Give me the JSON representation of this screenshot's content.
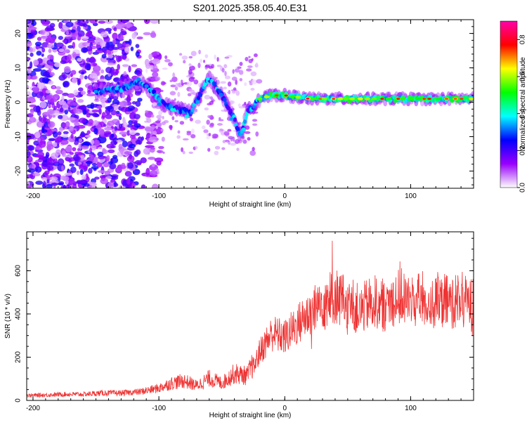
{
  "title": "S201.2025.358.05.40.E31",
  "chart_data": [
    {
      "type": "heatmap",
      "title": "S201.2025.358.05.40.E31",
      "xlabel": "Height of straight line (km)",
      "ylabel": "Frequency (Hz)",
      "xlim": [
        -205,
        150
      ],
      "ylim": [
        -25,
        24
      ],
      "xticks": [
        -200,
        -100,
        0,
        100
      ],
      "yticks": [
        -20,
        -10,
        0,
        10,
        20
      ],
      "colorbar": {
        "label": "Normalized spectral amplitude",
        "range": [
          0.0,
          0.9
        ],
        "ticks": [
          0.0,
          0.2,
          0.4,
          0.6,
          0.8
        ],
        "colors": [
          "#ffffff",
          "#9900ff",
          "#0000ff",
          "#00ffff",
          "#00ff00",
          "#ffff00",
          "#ff0000",
          "#ff00aa"
        ]
      },
      "ridge": {
        "description_points_x": [
          -150,
          -130,
          -115,
          -105,
          -95,
          -85,
          -75,
          -60,
          -50,
          -40,
          -35,
          -30,
          -20,
          -10,
          0,
          20,
          50,
          100,
          150
        ],
        "description_points_y": [
          3,
          4,
          6,
          3,
          -1,
          -2,
          -3,
          7,
          2,
          -5,
          -10,
          -3,
          1,
          2,
          2,
          1,
          1,
          1,
          1
        ]
      }
    },
    {
      "type": "line",
      "xlabel": "Height of straight line (km)",
      "ylabel": "SNR (10 * v/v)",
      "xlim": [
        -205,
        150
      ],
      "ylim": [
        0,
        780
      ],
      "xticks": [
        -200,
        -100,
        0,
        100
      ],
      "yticks": [
        0,
        200,
        400,
        600
      ],
      "series": [
        {
          "name": "SNR",
          "color": "#ee3333",
          "x": [
            -205,
            -190,
            -175,
            -160,
            -145,
            -130,
            -115,
            -100,
            -90,
            -80,
            -70,
            -60,
            -50,
            -40,
            -30,
            -25,
            -20,
            -10,
            0,
            10,
            20,
            30,
            40,
            50,
            60,
            70,
            80,
            90,
            100,
            110,
            120,
            130,
            140,
            150
          ],
          "y": [
            20,
            22,
            25,
            25,
            30,
            30,
            35,
            50,
            70,
            80,
            60,
            90,
            70,
            110,
            100,
            150,
            230,
            320,
            300,
            360,
            420,
            470,
            500,
            460,
            430,
            470,
            450,
            500,
            470,
            480,
            460,
            470,
            480,
            450
          ]
        }
      ]
    }
  ]
}
